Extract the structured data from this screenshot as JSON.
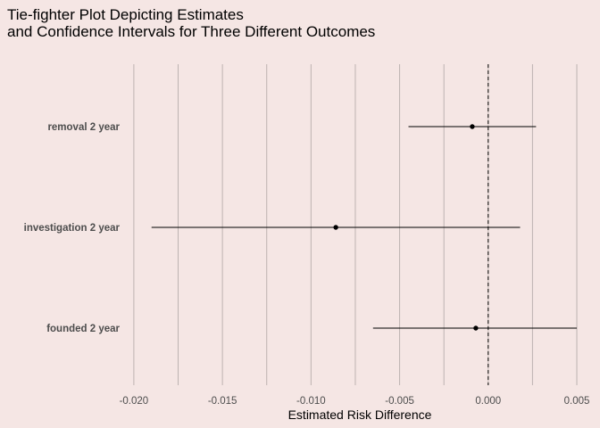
{
  "chart_data": {
    "type": "scatter",
    "title_lines": [
      "Tie-fighter Plot Depicting Estimates",
      "and Confidence Intervals for Three Different Outcomes"
    ],
    "xlabel": "Estimated Risk Difference",
    "ylabel": "",
    "xlim": [
      -0.0207,
      0.0052
    ],
    "x_ticks": [
      -0.02,
      -0.015,
      -0.01,
      -0.005,
      0.0,
      0.005
    ],
    "x_tick_labels": [
      "-0.020",
      "-0.015",
      "-0.010",
      "-0.005",
      "0.000",
      "0.005"
    ],
    "minor_gridlines": [
      -0.0175,
      -0.0125,
      -0.0075,
      -0.0025,
      0.0025
    ],
    "reference_line": 0.0,
    "grid": "vertical",
    "categories": [
      "removal 2 year",
      "investigation 2 year",
      "founded 2 year"
    ],
    "estimates": [
      {
        "label": "removal 2 year",
        "estimate": -0.0009,
        "lower": -0.0045,
        "upper": 0.0027
      },
      {
        "label": "investigation 2 year",
        "estimate": -0.0086,
        "lower": -0.019,
        "upper": 0.0018
      },
      {
        "label": "founded 2 year",
        "estimate": -0.0007,
        "lower": -0.0065,
        "upper": 0.005
      }
    ],
    "colors": {
      "background": "#f5e6e4",
      "gridline": "#bdb3b1",
      "point": "#000000",
      "interval": "#000000"
    }
  }
}
